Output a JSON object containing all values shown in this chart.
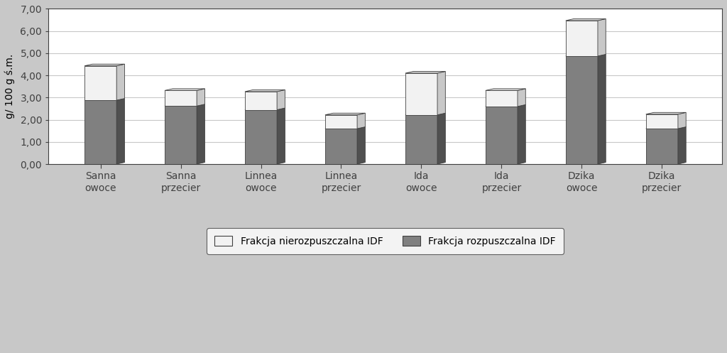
{
  "categories": [
    "Sanna\nowoce",
    "Sanna\nprzecier",
    "Linnea\nowoce",
    "Linnea\nprzecier",
    "Ida\nowoce",
    "Ida\nprzecier",
    "Dzika\nowoce",
    "Dzika\nprzecier"
  ],
  "idf_values": [
    1.55,
    0.7,
    0.82,
    0.62,
    1.88,
    0.72,
    1.6,
    0.65
  ],
  "sdf_values": [
    2.88,
    2.62,
    2.45,
    1.6,
    2.22,
    2.6,
    4.87,
    1.6
  ],
  "idf_color": "#f2f2f2",
  "sdf_color": "#808080",
  "idf_label": "Frakcja nierozpuszczalna IDF",
  "sdf_label": "Frakcja rozpuszczalna IDF",
  "ylabel": "g/ 100 g ś.m.",
  "ylim": [
    0,
    7.0
  ],
  "yticks": [
    0.0,
    1.0,
    2.0,
    3.0,
    4.0,
    5.0,
    6.0,
    7.0
  ],
  "ytick_labels": [
    "0,00",
    "1,00",
    "2,00",
    "3,00",
    "4,00",
    "5,00",
    "6,00",
    "7,00"
  ],
  "figure_bg": "#c8c8c8",
  "plot_bg": "#ffffff",
  "floor_color": "#c0c0c0",
  "bar_width": 0.4,
  "bar_depth": 0.12,
  "bar_edge_color": "#404040",
  "grid_color": "#c8c8c8",
  "shadow_color": "#606060",
  "side_color_idf": "#c8c8c8",
  "side_color_sdf": "#505050",
  "top_color_idf": "#d8d8d8",
  "top_color_sdf": "#686868"
}
